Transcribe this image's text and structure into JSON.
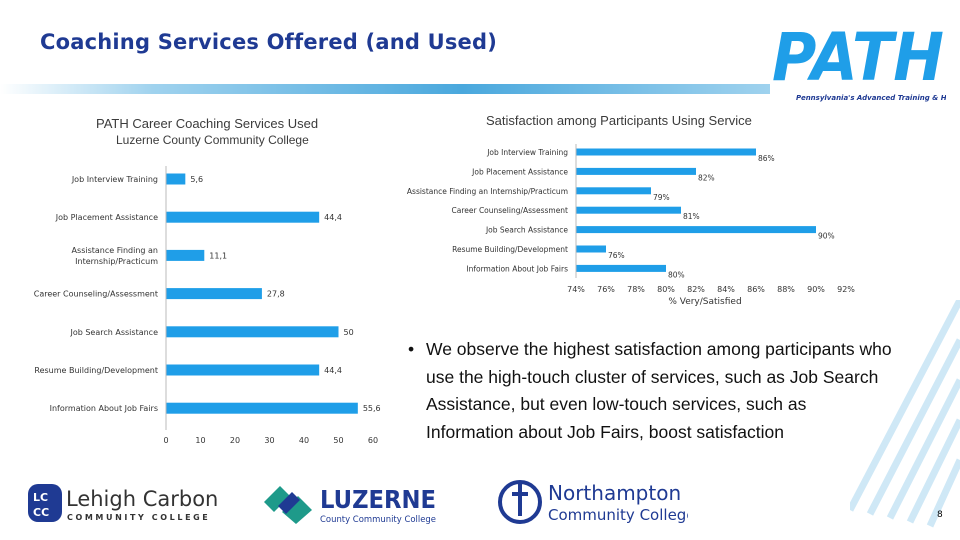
{
  "slide": {
    "title": "Coaching Services Offered (and Used)",
    "page_number": "8",
    "bullet": "We observe the highest satisfaction among participants who use the high-touch cluster of services, such as Job Search Assistance, but even low-touch services, such as Information about Job Fairs, boost satisfaction",
    "logos": {
      "path_text": "PATH",
      "path_tagline": "Pennsylvania's Advanced Training & Hiring",
      "lccc_name": "Lehigh Carbon",
      "lccc_sub": "COMMUNITY COLLEGE",
      "lccc_badge": "LCCC",
      "luzerne_name": "LUZERNE",
      "luzerne_sub": "County Community College",
      "northampton_name": "Northampton",
      "northampton_sub": "Community College"
    },
    "colors": {
      "bar": "#1f9ee8",
      "title": "#1f3a93",
      "accent": "#4aa8dd"
    }
  },
  "chart_data": [
    {
      "type": "bar",
      "orientation": "horizontal",
      "title": "PATH Career Coaching Services Used",
      "subtitle": "Luzerne County Community College",
      "categories": [
        "Job Interview Training",
        "Job Placement Assistance",
        "Assistance Finding an Internship/Practicum",
        "Career Counseling/Assessment",
        "Job Search Assistance",
        "Resume Building/Development",
        "Information About Job Fairs"
      ],
      "values": [
        5.6,
        44.4,
        11.1,
        27.8,
        50,
        44.4,
        55.6
      ],
      "value_labels": [
        "5,6",
        "44,4",
        "11,1",
        "27,8",
        "50",
        "44,4",
        "55,6"
      ],
      "xlim": [
        0,
        60
      ],
      "xticks": [
        "0",
        "10",
        "20",
        "30",
        "40",
        "50",
        "60"
      ],
      "grid": false,
      "legend": "none"
    },
    {
      "type": "bar",
      "orientation": "horizontal",
      "title": "Satisfaction among Participants Using Service",
      "categories": [
        "Job Interview Training",
        "Job Placement Assistance",
        "Assistance Finding an Internship/Practicum",
        "Career Counseling/Assessment",
        "Job Search Assistance",
        "Resume Building/Development",
        "Information About Job Fairs"
      ],
      "values": [
        86,
        82,
        79,
        81,
        90,
        76,
        80
      ],
      "value_labels": [
        "86%",
        "82%",
        "79%",
        "81%",
        "90%",
        "76%",
        "80%"
      ],
      "xlim": [
        74,
        92
      ],
      "xticks": [
        "74%",
        "76%",
        "78%",
        "80%",
        "82%",
        "84%",
        "86%",
        "88%",
        "90%",
        "92%"
      ],
      "xlabel": "% Very/Satisfied",
      "grid": false,
      "legend": "none"
    }
  ]
}
